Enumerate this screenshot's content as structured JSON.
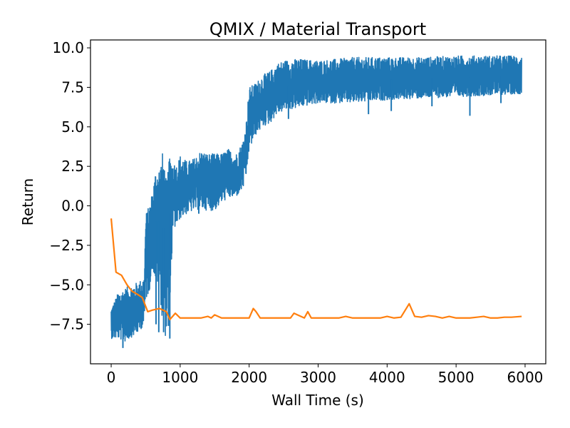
{
  "chart_data": {
    "type": "line",
    "title": "QMIX / Material Transport",
    "xlabel": "Wall Time (s)",
    "ylabel": "Return",
    "xlim": [
      -300,
      6300
    ],
    "ylim": [
      -10.0,
      10.5
    ],
    "x_ticks": [
      0,
      1000,
      2000,
      3000,
      4000,
      5000,
      6000
    ],
    "x_tick_labels": [
      "0",
      "1000",
      "2000",
      "3000",
      "4000",
      "5000",
      "6000"
    ],
    "y_ticks": [
      -7.5,
      -5.0,
      -2.5,
      0.0,
      2.5,
      5.0,
      7.5,
      10.0
    ],
    "y_tick_labels": [
      "−7.5",
      "−5.0",
      "−2.5",
      "0.0",
      "2.5",
      "5.0",
      "7.5",
      "10.0"
    ],
    "grid": false,
    "legend": "none",
    "series": [
      {
        "color": "#1f77b4",
        "envelope_x": [
          0,
          100,
          200,
          300,
          400,
          480,
          500,
          550,
          600,
          650,
          700,
          750,
          800,
          850,
          900,
          950,
          1000,
          1100,
          1200,
          1300,
          1400,
          1500,
          1600,
          1700,
          1800,
          1900,
          1950,
          2000,
          2100,
          2200,
          2300,
          2400,
          2500,
          2700,
          3000,
          3300,
          3500,
          4000,
          4500,
          5000,
          5500,
          5950
        ],
        "envelope_low": [
          -8.4,
          -8.4,
          -8.6,
          -8.3,
          -8.0,
          -7.5,
          -6.0,
          -5.5,
          -4.0,
          -5.0,
          -5.0,
          -8.0,
          -8.4,
          -6.0,
          -1.5,
          -1.3,
          -0.8,
          -0.5,
          -0.3,
          -0.2,
          -0.3,
          -0.3,
          0.2,
          0.5,
          0.5,
          1.0,
          1.5,
          3.5,
          4.5,
          5.0,
          5.2,
          5.8,
          6.0,
          6.2,
          6.5,
          6.5,
          6.5,
          6.7,
          6.8,
          6.9,
          7.0,
          7.1
        ],
        "envelope_high": [
          -6.5,
          -5.5,
          -5.2,
          -5.0,
          -4.8,
          -4.5,
          -0.5,
          0.0,
          1.0,
          2.5,
          2.5,
          3.5,
          1.5,
          3.2,
          2.8,
          2.6,
          3.2,
          2.8,
          3.0,
          3.5,
          3.3,
          3.3,
          3.3,
          3.6,
          3.2,
          4.0,
          5.0,
          7.5,
          7.8,
          8.3,
          8.5,
          9.0,
          9.2,
          9.3,
          9.2,
          9.3,
          9.4,
          9.4,
          9.4,
          9.5,
          9.5,
          9.5
        ],
        "envelope_mid": [
          -7.4,
          -7.0,
          -7.0,
          -6.8,
          -6.5,
          -6.0,
          -3.0,
          -2.5,
          -1.5,
          -1.0,
          -1.0,
          -1.5,
          -1.0,
          -0.5,
          0.7,
          0.7,
          1.2,
          1.2,
          1.3,
          1.5,
          1.5,
          1.5,
          1.7,
          2.0,
          2.0,
          2.5,
          3.3,
          5.5,
          6.2,
          6.7,
          7.0,
          7.3,
          7.6,
          7.7,
          7.8,
          7.9,
          8.0,
          8.0,
          8.1,
          8.1,
          8.2,
          8.3
        ],
        "dips_x": [
          170,
          650,
          690,
          760,
          830,
          850,
          1270,
          2570,
          3730,
          4060,
          4650,
          5200,
          5650
        ],
        "dips_y": [
          -9.0,
          -7.5,
          -8.0,
          -8.0,
          -7.6,
          -8.4,
          -0.5,
          5.5,
          5.8,
          6.0,
          6.3,
          5.7,
          6.5
        ]
      },
      {
        "color": "#ff7f0e",
        "x": [
          0,
          70,
          150,
          230,
          300,
          380,
          450,
          530,
          600,
          700,
          800,
          850,
          930,
          1000,
          1100,
          1200,
          1300,
          1400,
          1450,
          1500,
          1600,
          1700,
          1800,
          1900,
          2000,
          2060,
          2100,
          2160,
          2200,
          2300,
          2400,
          2500,
          2600,
          2650,
          2700,
          2800,
          2850,
          2900,
          3000,
          3100,
          3200,
          3300,
          3400,
          3500,
          3600,
          3700,
          3800,
          3900,
          4000,
          4100,
          4200,
          4320,
          4400,
          4500,
          4600,
          4700,
          4800,
          4900,
          5000,
          5100,
          5200,
          5300,
          5400,
          5500,
          5600,
          5700,
          5800,
          5950
        ],
        "y": [
          -0.8,
          -4.2,
          -4.4,
          -5.0,
          -5.4,
          -5.6,
          -5.8,
          -6.7,
          -6.6,
          -6.5,
          -6.7,
          -7.2,
          -6.8,
          -7.1,
          -7.1,
          -7.1,
          -7.1,
          -7.0,
          -7.1,
          -6.9,
          -7.1,
          -7.1,
          -7.1,
          -7.1,
          -7.1,
          -6.5,
          -6.7,
          -7.1,
          -7.1,
          -7.1,
          -7.1,
          -7.1,
          -7.1,
          -6.8,
          -6.9,
          -7.1,
          -6.7,
          -7.1,
          -7.1,
          -7.1,
          -7.1,
          -7.1,
          -7.0,
          -7.1,
          -7.1,
          -7.1,
          -7.1,
          -7.1,
          -7.0,
          -7.1,
          -7.05,
          -6.2,
          -7.0,
          -7.05,
          -6.95,
          -7.0,
          -7.1,
          -7.0,
          -7.1,
          -7.1,
          -7.1,
          -7.05,
          -7.0,
          -7.1,
          -7.1,
          -7.05,
          -7.05,
          -7.0
        ]
      }
    ]
  }
}
